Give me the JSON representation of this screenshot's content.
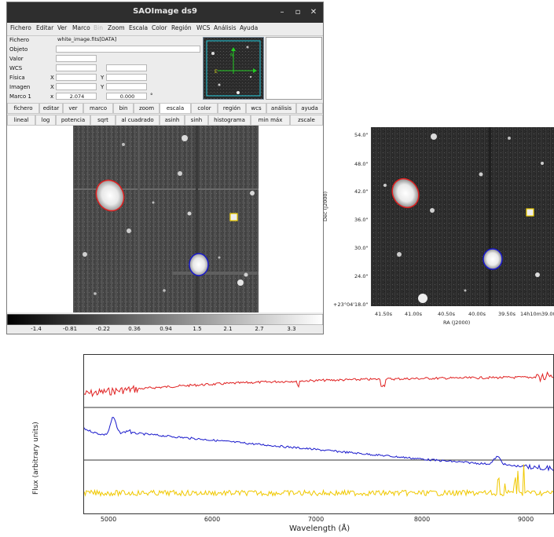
{
  "window": {
    "title": "SAOImage ds9",
    "controls": {
      "minimize": "–",
      "maximize": "▫",
      "close": "✕"
    }
  },
  "menubar": [
    {
      "label": "Fichero"
    },
    {
      "label": "Editar"
    },
    {
      "label": "Ver"
    },
    {
      "label": "Marco"
    },
    {
      "label": "Bin",
      "disabled": true
    },
    {
      "label": "Zoom"
    },
    {
      "label": "Escala"
    },
    {
      "label": "Color"
    },
    {
      "label": "Región"
    },
    {
      "label": "WCS"
    },
    {
      "label": "Análisis"
    },
    {
      "label": "Ayuda"
    }
  ],
  "info": {
    "fichero_label": "Fichero",
    "fichero_value": "white_image.fits[DATA]",
    "objeto_label": "Objeto",
    "valor_label": "Valor",
    "wcs_label": "WCS",
    "fisica_label": "Física",
    "imagen_label": "Imagen",
    "marco_label": "Marco 1",
    "x_label": "X",
    "y_label": "Y",
    "zoom_x_label": "x",
    "zoom_value": "2.074",
    "angle_value": "0.000",
    "degree_symbol": "°"
  },
  "button_row_1": [
    "fichero",
    "editar",
    "ver",
    "marco",
    "bin",
    "zoom",
    "escala",
    "color",
    "región",
    "wcs",
    "análisis",
    "ayuda"
  ],
  "button_row_1_active": "escala",
  "button_row_2": [
    "lineal",
    "log",
    "potencia",
    "sqrt",
    "al cuadrado",
    "asinh",
    "sinh",
    "histograma",
    "min máx",
    "zscale"
  ],
  "colorbar_ticks": [
    "-1.4",
    "-0.81",
    "-0.22",
    "0.36",
    "0.94",
    "1.5",
    "2.1",
    "2.7",
    "3.3"
  ],
  "wcs_image": {
    "dec_ticks": [
      "54.0\"",
      "48.0\"",
      "42.0\"",
      "36.0\"",
      "30.0\"",
      "24.0\"",
      "+23°04'18.0\""
    ],
    "ra_ticks": [
      "41.50s",
      "41.00s",
      "40.50s",
      "40.00s",
      "39.50s",
      "14h10m39.00s"
    ],
    "ylabel": "Dec (J2000)",
    "xlabel": "RA (J2000)"
  },
  "spectra": {
    "ylabel": "Flux (arbitrary units)",
    "xlabel": "Wavelength (Å)",
    "x_ticks": [
      "5000",
      "6000",
      "7000",
      "8000",
      "9000"
    ],
    "series_colors": {
      "red": "#e02020",
      "blue": "#1a1acc",
      "yellow": "#f0c800"
    }
  },
  "colors": {
    "titlebar": "#2e2e2e",
    "region_red": "#e02020",
    "region_blue": "#1a1acc",
    "region_yellow": "#f0d000",
    "panner_green": "#22cc22"
  }
}
